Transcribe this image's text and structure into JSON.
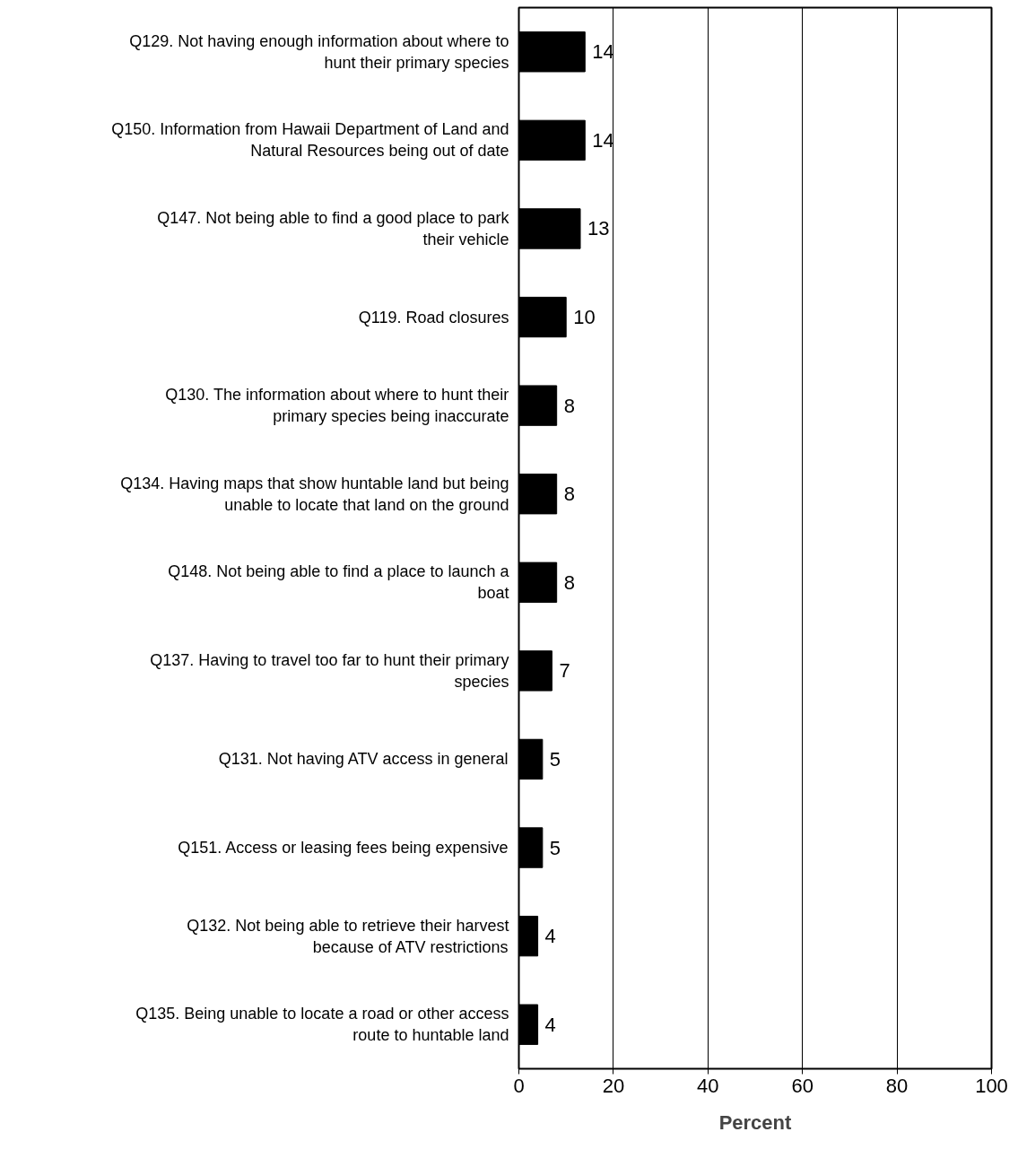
{
  "chart_data": {
    "type": "bar",
    "orientation": "horizontal",
    "xlabel": "Percent",
    "categories": [
      "Q129. Not having enough information about where to hunt their primary species",
      "Q150. Information from Hawaii Department of Land and Natural Resources being out of date",
      "Q147. Not being able to find a good place to park their vehicle",
      "Q119. Road closures",
      "Q130. The information about where to hunt their primary species being inaccurate",
      "Q134. Having maps that show huntable land but being unable to locate that land on the ground",
      "Q148. Not being able to find a place to launch a boat",
      "Q137. Having to travel too far to hunt their primary species",
      "Q131. Not having ATV access in general",
      "Q151. Access or leasing fees being expensive",
      "Q132. Not being able to retrieve their harvest because of ATV restrictions",
      "Q135. Being unable to locate a road or other access route to huntable land"
    ],
    "values": [
      14,
      14,
      13,
      10,
      8,
      8,
      8,
      7,
      5,
      5,
      4,
      4
    ],
    "color": "#000000",
    "data_labels": true,
    "xlim": [
      0,
      100
    ],
    "xticks": [
      0,
      20,
      40,
      60,
      80,
      100
    ],
    "grid": "x"
  }
}
